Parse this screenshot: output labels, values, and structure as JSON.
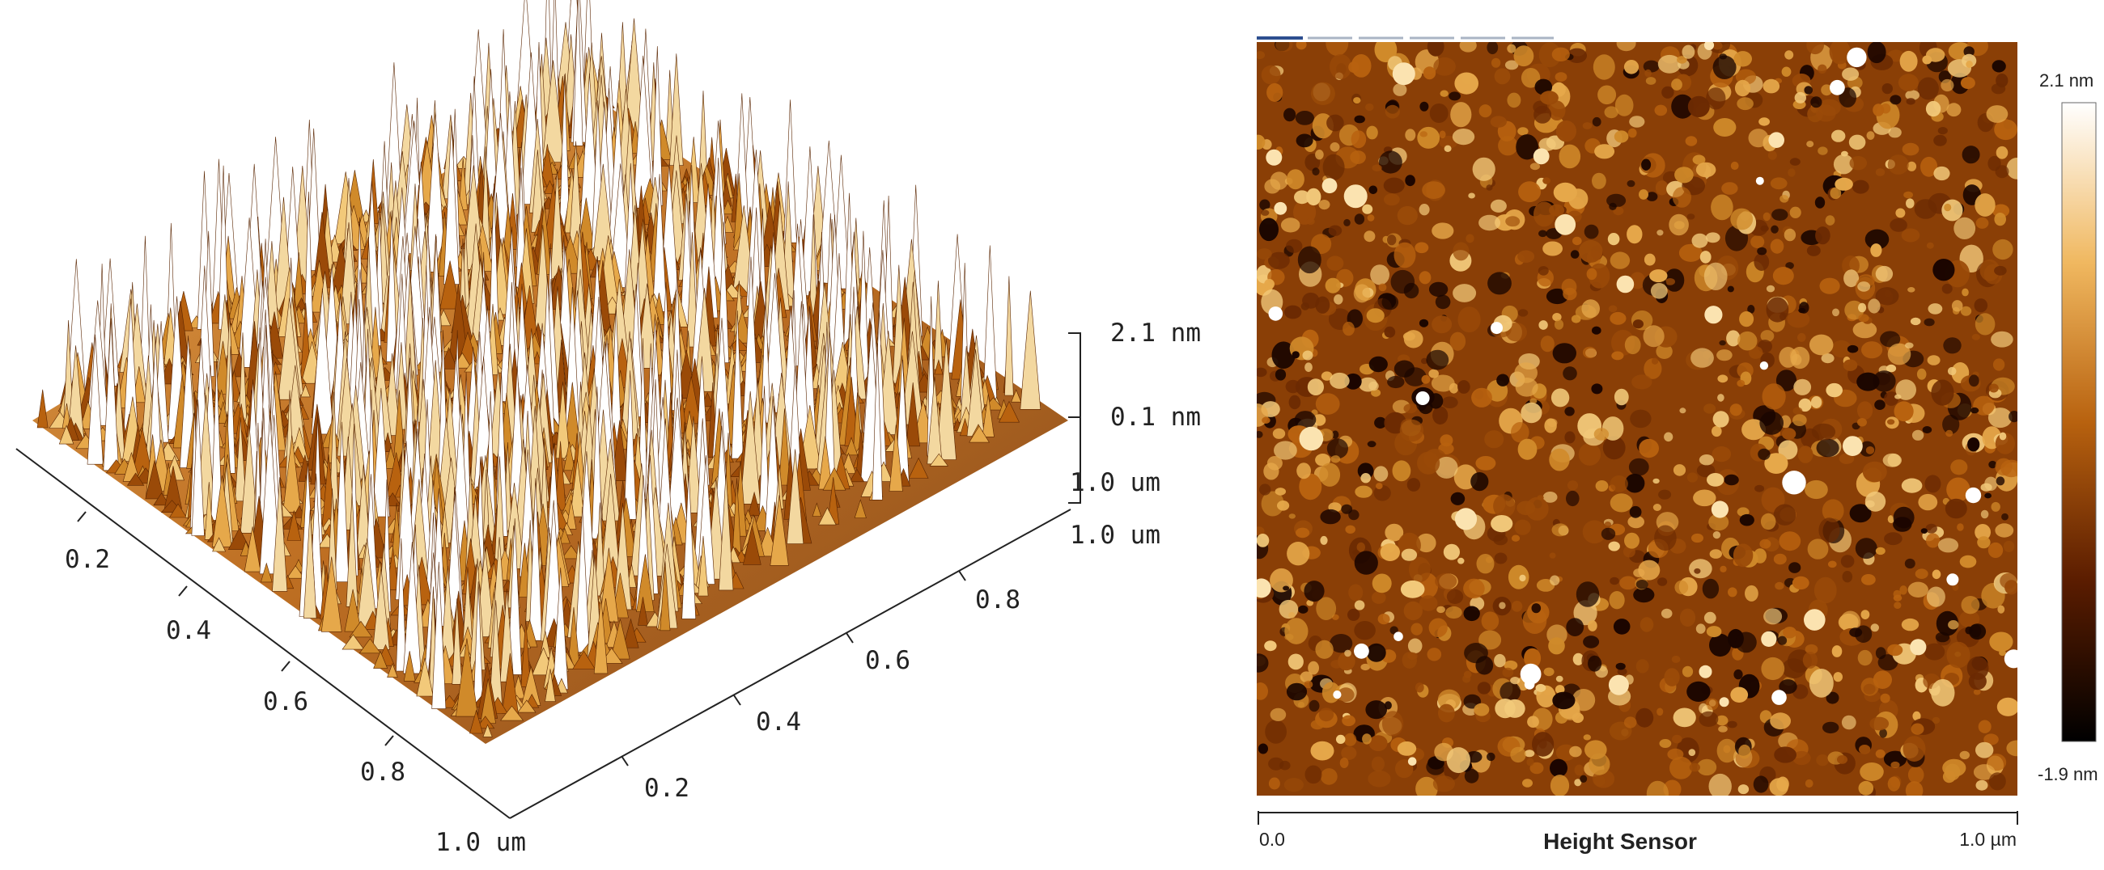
{
  "surface_3d": {
    "z_axis": {
      "top_label": "2.1 nm",
      "mid_label": "0.1 nm",
      "corner_label": "1.0 um"
    },
    "right_axis": {
      "ticks": [
        "0.2",
        "0.4",
        "0.6",
        "0.8"
      ],
      "end_label": "1.0 um"
    },
    "left_axis": {
      "ticks": [
        "0.2",
        "0.4",
        "0.6",
        "0.8"
      ],
      "end_label": "1.0 um"
    }
  },
  "height_map": {
    "channel_label": "Height Sensor",
    "x_axis_start": "0.0",
    "x_axis_end": "1.0 µm",
    "colorbar_max": "2.1 nm",
    "colorbar_min": "-1.9 nm"
  },
  "colors": {
    "dark": "#1a0500",
    "mid": "#b8620f",
    "bright": "#f2c97a",
    "peak": "#ffffff"
  }
}
